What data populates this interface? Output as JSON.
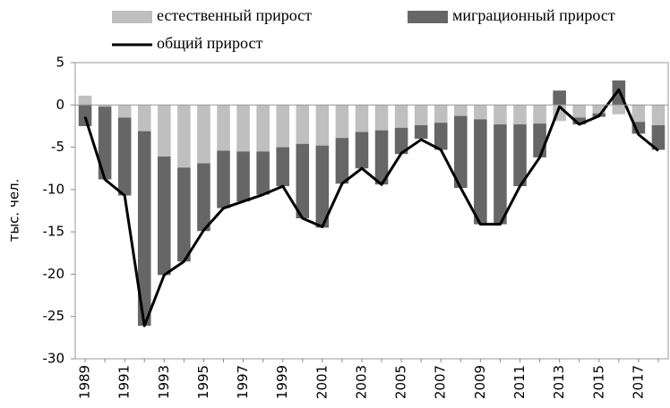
{
  "chart_data": {
    "type": "combo",
    "y_label": "тыс. чел.",
    "categories": [
      "1989",
      null,
      "1991",
      null,
      "1993",
      null,
      "1995",
      null,
      "1997",
      null,
      "1999",
      null,
      "2001",
      null,
      "2003",
      null,
      "2005",
      null,
      "2007",
      null,
      "2009",
      null,
      "2011",
      null,
      "2013",
      null,
      "2015",
      null,
      "2017",
      null
    ],
    "series": [
      {
        "name": "естественный прирост",
        "type": "bar",
        "color": "#bfbfbf",
        "values": [
          1.1,
          -0.2,
          -1.5,
          -3.1,
          -6.1,
          -7.4,
          -6.9,
          -5.4,
          -5.5,
          -5.5,
          -5.0,
          -4.6,
          -4.8,
          -3.9,
          -3.2,
          -3.0,
          -2.7,
          -2.4,
          -2.1,
          -1.3,
          -1.7,
          -2.3,
          -2.3,
          -2.2,
          -1.9,
          -1.5,
          -1.0,
          -1.1,
          -2.0,
          -2.4
        ]
      },
      {
        "name": "миграционный прирост",
        "type": "bar",
        "color": "#666666",
        "values": [
          -2.5,
          -8.6,
          -9.2,
          -23.0,
          -14.0,
          -11.1,
          -8.0,
          -6.8,
          -5.9,
          -5.1,
          -4.6,
          -8.8,
          -9.7,
          -5.4,
          -4.3,
          -6.4,
          -3.1,
          -1.6,
          -3.2,
          -8.5,
          -12.4,
          -11.8,
          -7.3,
          -4.0,
          1.7,
          -0.8,
          -0.4,
          2.9,
          -1.4,
          -2.9
        ]
      },
      {
        "name": "общий прирост",
        "type": "line",
        "color": "#000000",
        "values": [
          -1.4,
          -8.8,
          -10.7,
          -26.1,
          -20.1,
          -18.5,
          -14.8,
          -12.2,
          -11.4,
          -10.6,
          -9.6,
          -13.4,
          -14.4,
          -9.3,
          -7.5,
          -9.4,
          -5.7,
          -4.1,
          -5.3,
          -9.8,
          -14.1,
          -14.1,
          -9.6,
          -6.2,
          -0.2,
          -2.3,
          -1.3,
          1.8,
          -3.5,
          -5.4
        ]
      }
    ],
    "ylim": [
      -30,
      5
    ],
    "yticks": [
      5,
      0,
      -5,
      -10,
      -15,
      -20,
      -25,
      -30
    ],
    "grid": false
  }
}
